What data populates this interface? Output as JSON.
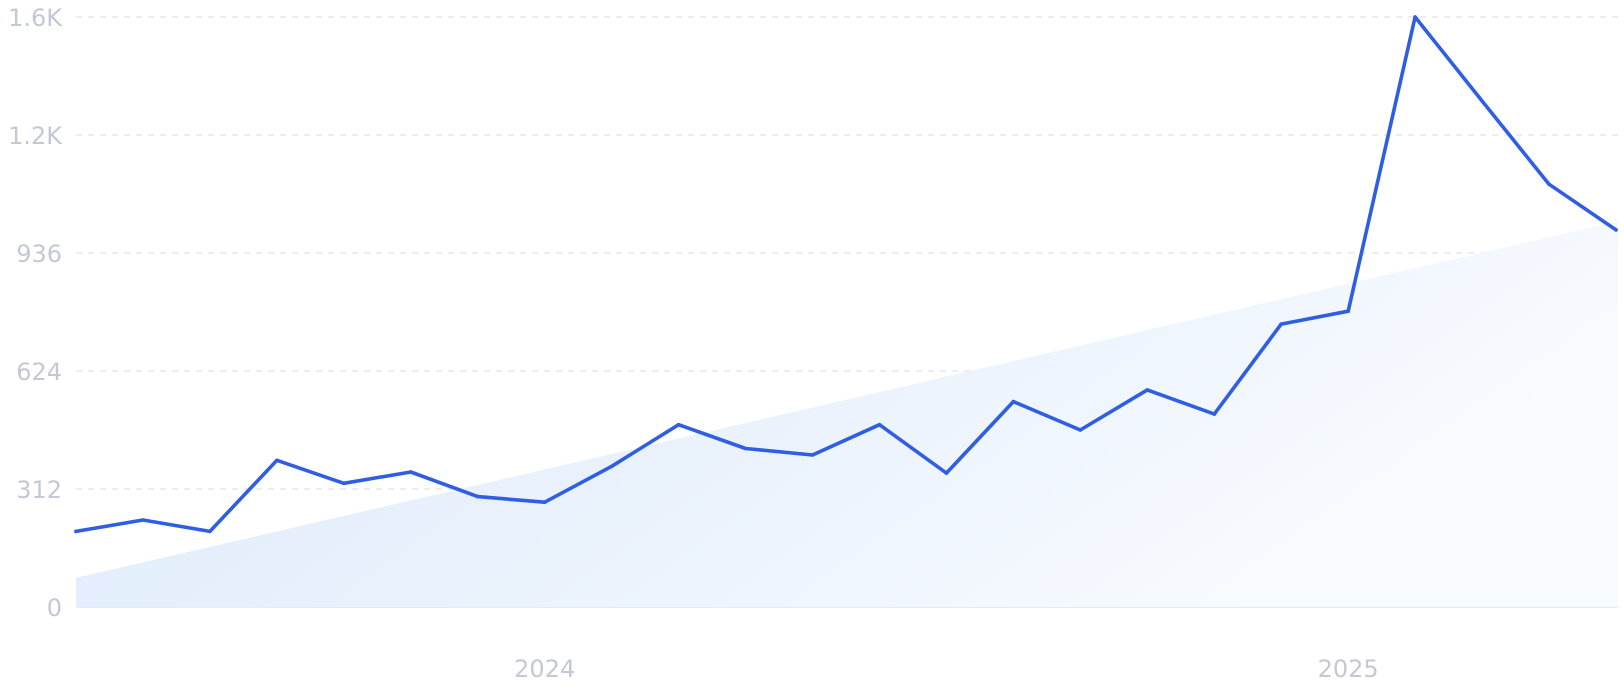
{
  "chart_data": {
    "type": "line",
    "title": "",
    "xlabel": "",
    "ylabel": "",
    "grid": true,
    "ylim": [
      0,
      1560
    ],
    "y_ticks": [
      {
        "value": 0,
        "label": "0"
      },
      {
        "value": 312,
        "label": "312"
      },
      {
        "value": 624,
        "label": "624"
      },
      {
        "value": 936,
        "label": "936"
      },
      {
        "value": 1248,
        "label": "1.2K"
      },
      {
        "value": 1560,
        "label": "1.6K"
      }
    ],
    "x_ticks": [
      {
        "date": "2024-01",
        "label": "2024"
      },
      {
        "date": "2025-01",
        "label": "2025"
      }
    ],
    "x": [
      "2023-06",
      "2023-07",
      "2023-08",
      "2023-09",
      "2023-10",
      "2023-11",
      "2023-12",
      "2024-01",
      "2024-02",
      "2024-03",
      "2024-04",
      "2024-05",
      "2024-06",
      "2024-07",
      "2024-08",
      "2024-09",
      "2024-10",
      "2024-11",
      "2024-12",
      "2025-01",
      "2025-02",
      "2025-03",
      "2025-04",
      "2025-05"
    ],
    "series": [
      {
        "kind": "line",
        "color": "#2f5ee3",
        "values": [
          200,
          230,
          200,
          388,
          327,
          357,
          292,
          277,
          372,
          482,
          419,
          402,
          482,
          354,
          543,
          468,
          574,
          510,
          748,
          782,
          1560,
          1338,
          1118,
          997
        ]
      },
      {
        "kind": "trend-area",
        "color": "#dce9fa",
        "start": 77,
        "end": 1020
      }
    ]
  }
}
